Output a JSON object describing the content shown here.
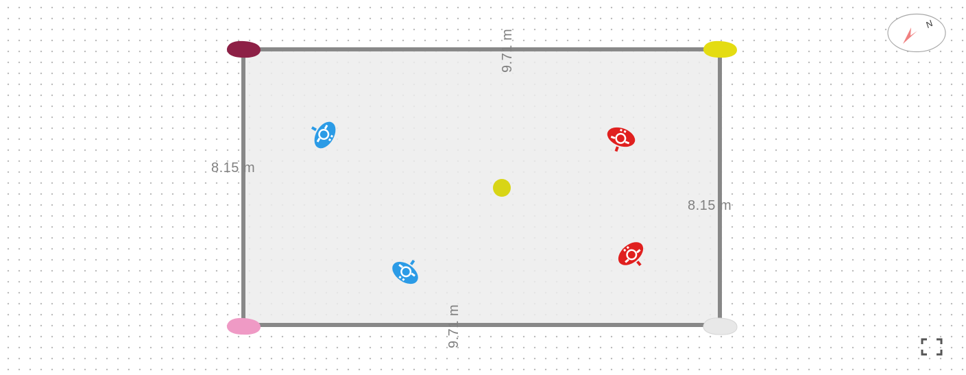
{
  "field": {
    "dimensions": {
      "top_length": "9.71 m",
      "bottom_length": "9.71 m",
      "left_width": "8.15 m",
      "right_width": "8.15 m"
    },
    "corner_markers": [
      {
        "name": "corner-marker-top-left",
        "color": "#8d2046"
      },
      {
        "name": "corner-marker-top-right",
        "color": "#e4dc12"
      },
      {
        "name": "corner-marker-bottom-left",
        "color": "#ef9ac5"
      },
      {
        "name": "corner-marker-bottom-right",
        "color": "#e8e8e8"
      }
    ],
    "ball": {
      "color": "#d8d516"
    }
  },
  "players": {
    "blue_team": {
      "color": "#2b9be6",
      "count": 2
    },
    "red_team": {
      "color": "#e0201f",
      "count": 2
    }
  },
  "compass": {
    "letter": "N",
    "icon": "compass-icon",
    "needle_color": "#f08080"
  },
  "controls": {
    "fullscreen": {
      "icon": "fullscreen-icon"
    }
  }
}
